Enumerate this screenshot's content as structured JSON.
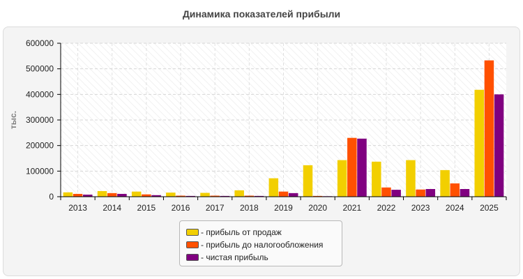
{
  "colors": {
    "sales": "#f2cf00",
    "pretax": "#ff5000",
    "net": "#800080"
  },
  "chart_data": {
    "type": "bar",
    "title": "Динамика показателей прибыли",
    "ylabel": "тыс.",
    "xlabel": "",
    "ylim": [
      0,
      600000
    ],
    "yticks": [
      "0",
      "100000",
      "200000",
      "300000",
      "400000",
      "500000",
      "600000"
    ],
    "grid": true,
    "legend_position": "bottom-center",
    "categories": [
      "2013",
      "2014",
      "2015",
      "2016",
      "2017",
      "2018",
      "2019",
      "2020",
      "2021",
      "2022",
      "2023",
      "2024",
      "2025"
    ],
    "series": [
      {
        "name": "- прибыль от продаж",
        "color": "#f2cf00",
        "values": [
          17000,
          22000,
          20000,
          16000,
          15000,
          25000,
          72000,
          123000,
          143000,
          137000,
          143000,
          104000,
          418000
        ]
      },
      {
        "name": "- прибыль до налогообложения",
        "color": "#ff5000",
        "values": [
          11000,
          14000,
          9000,
          4000,
          4000,
          4000,
          20000,
          3000,
          230000,
          36000,
          28000,
          52000,
          533000
        ]
      },
      {
        "name": "- чистая прибыль",
        "color": "#800080",
        "values": [
          8000,
          11000,
          6000,
          3000,
          3000,
          3000,
          14000,
          2000,
          227000,
          27000,
          30000,
          30000,
          400000
        ]
      }
    ]
  }
}
